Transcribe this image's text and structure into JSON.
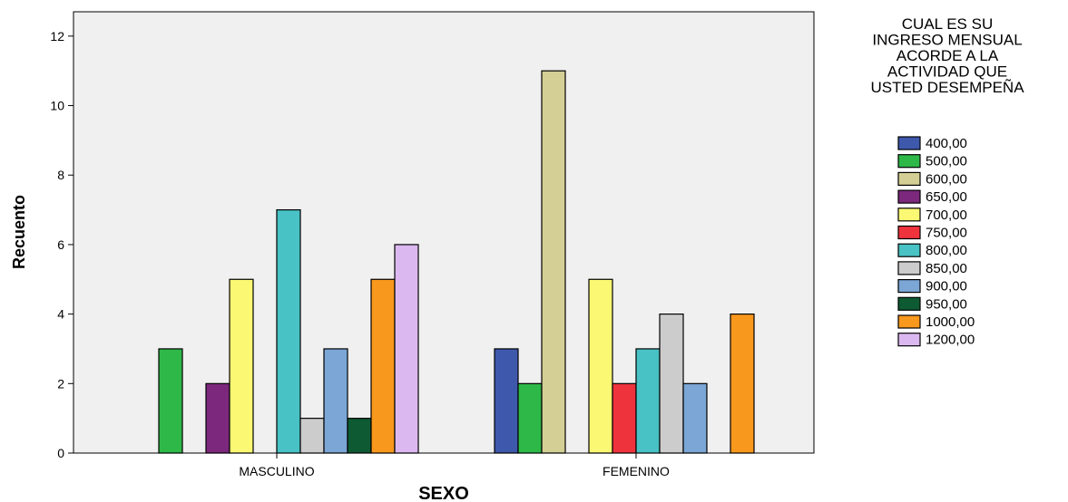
{
  "chart_data": {
    "type": "bar",
    "xlabel": "SEXO",
    "ylabel": "Recuento",
    "categories": [
      "MASCULINO",
      "FEMENINO"
    ],
    "ylim": [
      0,
      12.7
    ],
    "yticks": [
      0,
      2,
      4,
      6,
      8,
      10,
      12
    ],
    "grid": false,
    "legend_position": "right",
    "legend_title": [
      "CUAL ES SU",
      "INGRESO MENSUAL",
      "ACORDE A LA",
      "ACTIVIDAD QUE",
      "USTED DESEMPEÑA"
    ],
    "series": [
      {
        "name": "400,00",
        "color": "#3e58ac",
        "values": [
          0,
          3
        ]
      },
      {
        "name": "500,00",
        "color": "#2eb848",
        "values": [
          3,
          2
        ]
      },
      {
        "name": "600,00",
        "color": "#d4cf94",
        "values": [
          0,
          11
        ]
      },
      {
        "name": "650,00",
        "color": "#7c287d",
        "values": [
          2,
          0
        ]
      },
      {
        "name": "700,00",
        "color": "#fbf873",
        "values": [
          5,
          5
        ]
      },
      {
        "name": "750,00",
        "color": "#ee333d",
        "values": [
          0,
          2
        ]
      },
      {
        "name": "800,00",
        "color": "#48c2c5",
        "values": [
          7,
          3
        ]
      },
      {
        "name": "850,00",
        "color": "#cccccc",
        "values": [
          1,
          4
        ]
      },
      {
        "name": "900,00",
        "color": "#7ba6d5",
        "values": [
          3,
          2
        ]
      },
      {
        "name": "950,00",
        "color": "#0e5a32",
        "values": [
          1,
          0
        ]
      },
      {
        "name": "1000,00",
        "color": "#f8981d",
        "values": [
          5,
          4
        ]
      },
      {
        "name": "1200,00",
        "color": "#dbb8ef",
        "values": [
          6,
          0
        ]
      }
    ]
  }
}
